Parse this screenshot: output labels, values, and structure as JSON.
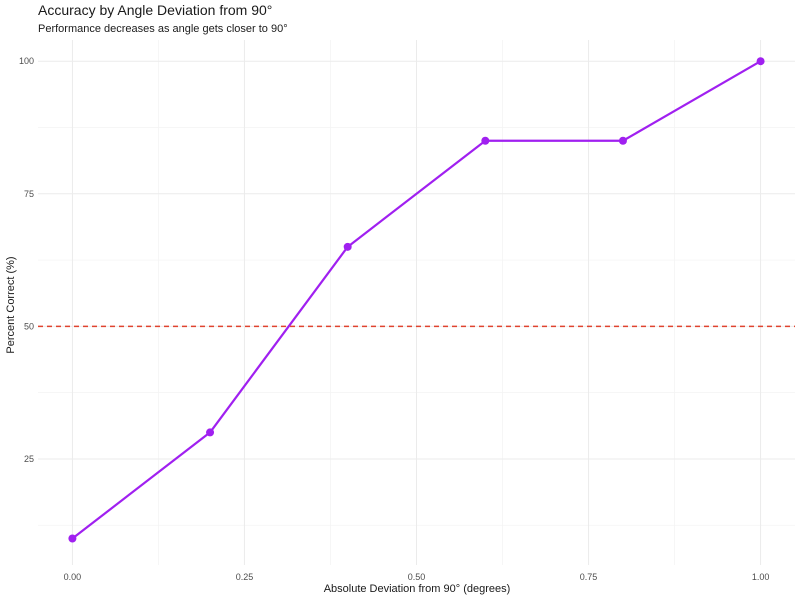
{
  "chart_data": {
    "type": "line",
    "title": "Accuracy by Angle Deviation from 90°",
    "subtitle": "Performance decreases as angle gets closer to 90°",
    "xlabel": "Absolute Deviation from 90° (degrees)",
    "ylabel": "Percent Correct (%)",
    "x": [
      0.0,
      0.2,
      0.4,
      0.6,
      0.8,
      1.0
    ],
    "series": [
      {
        "values": [
          10,
          30,
          65,
          85,
          85,
          100
        ],
        "color": "#a020f0"
      }
    ],
    "xlim": [
      -0.05,
      1.05
    ],
    "ylim": [
      5,
      104
    ],
    "xticks": [
      0.0,
      0.25,
      0.5,
      0.75,
      1.0
    ],
    "xtick_labels": [
      "0.00",
      "0.25",
      "0.50",
      "0.75",
      "1.00"
    ],
    "yticks": [
      25,
      50,
      75,
      100
    ],
    "ytick_labels": [
      "25",
      "50",
      "75",
      "100"
    ],
    "reference_line": {
      "y": 50,
      "color": "#e0432f",
      "style": "dashed"
    },
    "grid": true,
    "legend": "none"
  }
}
